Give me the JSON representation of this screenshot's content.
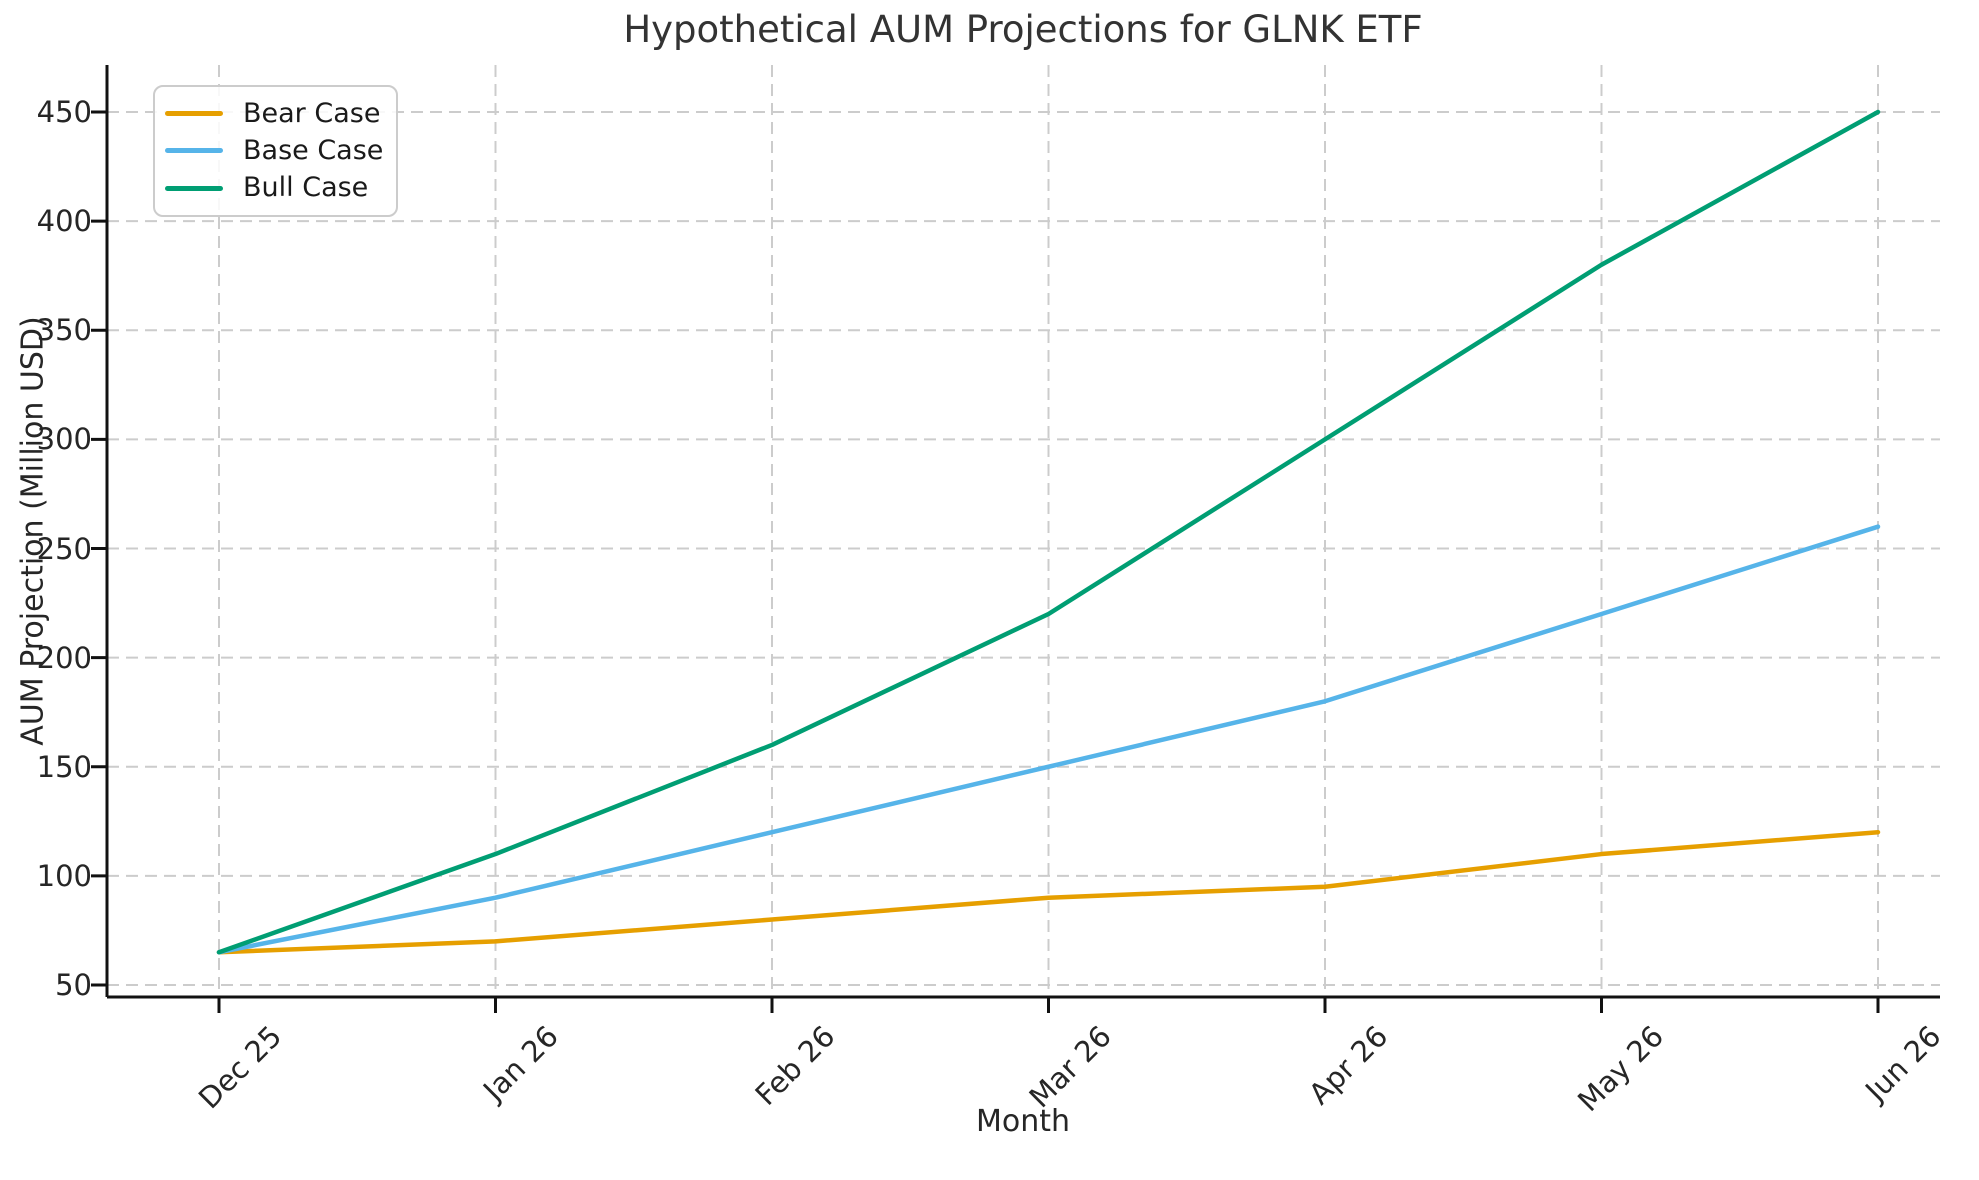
{
  "figure": {
    "background": "#ffffff",
    "text_color": "#262626",
    "grid_color": "#cccccc",
    "spine_color": "#111111"
  },
  "chart_data": {
    "type": "line",
    "title": "Hypothetical AUM Projections for GLNK ETF",
    "xlabel": "Month",
    "ylabel": "AUM Projection (Million USD)",
    "categories": [
      "Dec 25",
      "Jan 26",
      "Feb 26",
      "Mar 26",
      "Apr 26",
      "May 26",
      "Jun 26"
    ],
    "yticks": [
      50,
      100,
      150,
      200,
      250,
      300,
      350,
      400,
      450
    ],
    "ylim": [
      45,
      470
    ],
    "grid": true,
    "grid_style": "dashed",
    "legend_position": "upper-left",
    "series": [
      {
        "name": "Bear Case",
        "color": "#E69F00",
        "values": [
          65,
          70,
          80,
          90,
          95,
          110,
          120
        ]
      },
      {
        "name": "Base Case",
        "color": "#56B4E9",
        "values": [
          65,
          90,
          120,
          150,
          180,
          220,
          260
        ]
      },
      {
        "name": "Bull Case",
        "color": "#009E73",
        "values": [
          65,
          110,
          160,
          220,
          300,
          380,
          450
        ]
      }
    ]
  }
}
